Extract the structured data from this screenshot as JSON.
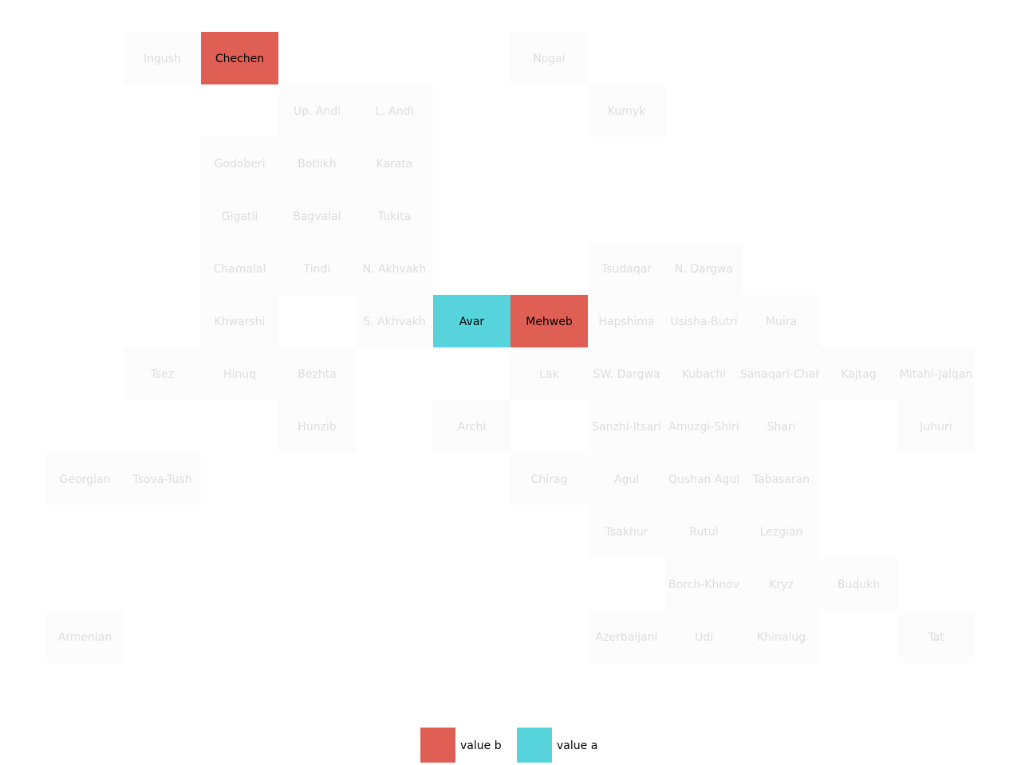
{
  "chart_data": {
    "type": "heatmap",
    "title": "",
    "colors": {
      "value a": "#56d3db",
      "value b": "#df5f55",
      "none": "#fcfcfc",
      "inactive_text": "#dddddd",
      "active_text": "#000000"
    },
    "legend": {
      "placement": "bottom-center",
      "entries": [
        {
          "label": "value b",
          "color": "#df5f55"
        },
        {
          "label": "value a",
          "color": "#56d3db"
        }
      ]
    },
    "cells": [
      {
        "name": "Ingush",
        "col": 1,
        "row": 0,
        "value": null
      },
      {
        "name": "Chechen",
        "col": 2,
        "row": 0,
        "value": "value b"
      },
      {
        "name": "Nogai",
        "col": 6,
        "row": 0,
        "value": null
      },
      {
        "name": "Up. Andi",
        "col": 3,
        "row": 1,
        "value": null
      },
      {
        "name": "L. Andi",
        "col": 4,
        "row": 1,
        "value": null
      },
      {
        "name": "Kumyk",
        "col": 7,
        "row": 1,
        "value": null
      },
      {
        "name": "Godoberi",
        "col": 2,
        "row": 2,
        "value": null
      },
      {
        "name": "Botlikh",
        "col": 3,
        "row": 2,
        "value": null
      },
      {
        "name": "Karata",
        "col": 4,
        "row": 2,
        "value": null
      },
      {
        "name": "Gigatli",
        "col": 2,
        "row": 3,
        "value": null
      },
      {
        "name": "Bagvalal",
        "col": 3,
        "row": 3,
        "value": null
      },
      {
        "name": "Tukita",
        "col": 4,
        "row": 3,
        "value": null
      },
      {
        "name": "Chamalal",
        "col": 2,
        "row": 4,
        "value": null
      },
      {
        "name": "Tindi",
        "col": 3,
        "row": 4,
        "value": null
      },
      {
        "name": "N. Akhvakh",
        "col": 4,
        "row": 4,
        "value": null
      },
      {
        "name": "Tsudaqar",
        "col": 7,
        "row": 4,
        "value": null
      },
      {
        "name": "N. Dargwa",
        "col": 8,
        "row": 4,
        "value": null
      },
      {
        "name": "Khwarshi",
        "col": 2,
        "row": 5,
        "value": null
      },
      {
        "name": "S. Akhvakh",
        "col": 4,
        "row": 5,
        "value": null
      },
      {
        "name": "Avar",
        "col": 5,
        "row": 5,
        "value": "value a"
      },
      {
        "name": "Mehweb",
        "col": 6,
        "row": 5,
        "value": "value b"
      },
      {
        "name": "Hapshima",
        "col": 7,
        "row": 5,
        "value": null
      },
      {
        "name": "Usisha-Butri",
        "col": 8,
        "row": 5,
        "value": null
      },
      {
        "name": "Muira",
        "col": 9,
        "row": 5,
        "value": null
      },
      {
        "name": "Tsez",
        "col": 1,
        "row": 6,
        "value": null
      },
      {
        "name": "Hinuq",
        "col": 2,
        "row": 6,
        "value": null
      },
      {
        "name": "Bezhta",
        "col": 3,
        "row": 6,
        "value": null
      },
      {
        "name": "Lak",
        "col": 6,
        "row": 6,
        "value": null
      },
      {
        "name": "SW. Dargwa",
        "col": 7,
        "row": 6,
        "value": null
      },
      {
        "name": "Kubachi",
        "col": 8,
        "row": 6,
        "value": null
      },
      {
        "name": "Sanaqari-Chah",
        "col": 9,
        "row": 6,
        "value": null
      },
      {
        "name": "Kajtag",
        "col": 10,
        "row": 6,
        "value": null
      },
      {
        "name": "Mitahi-Jalqan",
        "col": 11,
        "row": 6,
        "value": null
      },
      {
        "name": "Hunzib",
        "col": 3,
        "row": 7,
        "value": null
      },
      {
        "name": "Archi",
        "col": 5,
        "row": 7,
        "value": null
      },
      {
        "name": "Sanzhi-Itsari",
        "col": 7,
        "row": 7,
        "value": null
      },
      {
        "name": "Amuzgi-Shiri",
        "col": 8,
        "row": 7,
        "value": null
      },
      {
        "name": "Shari",
        "col": 9,
        "row": 7,
        "value": null
      },
      {
        "name": "Juhuri",
        "col": 11,
        "row": 7,
        "value": null
      },
      {
        "name": "Georgian",
        "col": 0,
        "row": 8,
        "value": null
      },
      {
        "name": "Tsova-Tush",
        "col": 1,
        "row": 8,
        "value": null
      },
      {
        "name": "Chirag",
        "col": 6,
        "row": 8,
        "value": null
      },
      {
        "name": "Agul",
        "col": 7,
        "row": 8,
        "value": null
      },
      {
        "name": "Qushan Agul",
        "col": 8,
        "row": 8,
        "value": null
      },
      {
        "name": "Tabasaran",
        "col": 9,
        "row": 8,
        "value": null
      },
      {
        "name": "Tsakhur",
        "col": 7,
        "row": 9,
        "value": null
      },
      {
        "name": "Rutul",
        "col": 8,
        "row": 9,
        "value": null
      },
      {
        "name": "Lezgian",
        "col": 9,
        "row": 9,
        "value": null
      },
      {
        "name": "Borch-Khnov",
        "col": 8,
        "row": 10,
        "value": null
      },
      {
        "name": "Kryz",
        "col": 9,
        "row": 10,
        "value": null
      },
      {
        "name": "Budukh",
        "col": 10,
        "row": 10,
        "value": null
      },
      {
        "name": "Armenian",
        "col": 0,
        "row": 11,
        "value": null
      },
      {
        "name": "Azerbaijani",
        "col": 7,
        "row": 11,
        "value": null
      },
      {
        "name": "Udi",
        "col": 8,
        "row": 11,
        "value": null
      },
      {
        "name": "Khinalug",
        "col": 9,
        "row": 11,
        "value": null
      },
      {
        "name": "Tat",
        "col": 11,
        "row": 11,
        "value": null
      }
    ]
  }
}
